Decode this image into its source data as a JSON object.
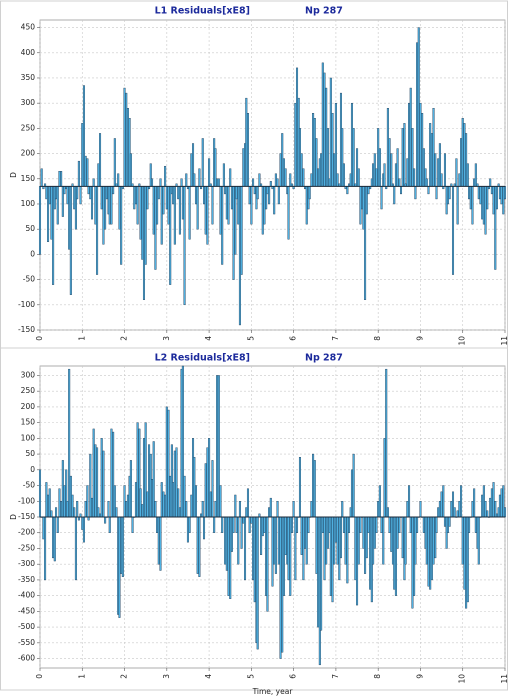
{
  "chart_data": [
    {
      "type": "bar",
      "title": "L1  Residuals[xE8]",
      "annotation": "Np 287",
      "ylabel": "D",
      "color": "#4fb0e0",
      "edgecolor": "#1b3550",
      "baseline": 135,
      "grid": true,
      "xlim": [
        0,
        11
      ],
      "xticks": [
        0,
        1,
        2,
        3,
        4,
        5,
        6,
        7,
        8,
        9,
        10,
        11
      ],
      "ylim": [
        -150,
        465
      ],
      "yticks": [
        -150,
        -100,
        -50,
        0,
        50,
        100,
        150,
        200,
        250,
        300,
        350,
        400,
        450
      ],
      "x": [
        0,
        0.04,
        0.08,
        0.12,
        0.15,
        0.19,
        0.23,
        0.27,
        0.31,
        0.35,
        0.38,
        0.42,
        0.46,
        0.5,
        0.54,
        0.58,
        0.62,
        0.65,
        0.69,
        0.73,
        0.77,
        0.81,
        0.85,
        0.88,
        0.92,
        0.96,
        1,
        1.04,
        1.08,
        1.12,
        1.15,
        1.19,
        1.23,
        1.27,
        1.31,
        1.35,
        1.38,
        1.42,
        1.46,
        1.5,
        1.54,
        1.58,
        1.62,
        1.65,
        1.69,
        1.73,
        1.77,
        1.81,
        1.85,
        1.88,
        1.92,
        1.96,
        2,
        2.04,
        2.08,
        2.12,
        2.15,
        2.19,
        2.23,
        2.27,
        2.31,
        2.35,
        2.38,
        2.42,
        2.46,
        2.5,
        2.54,
        2.58,
        2.62,
        2.65,
        2.69,
        2.73,
        2.77,
        2.81,
        2.85,
        2.88,
        2.92,
        2.96,
        3,
        3.04,
        3.08,
        3.12,
        3.15,
        3.19,
        3.23,
        3.27,
        3.31,
        3.35,
        3.38,
        3.42,
        3.46,
        3.5,
        3.54,
        3.58,
        3.62,
        3.65,
        3.69,
        3.73,
        3.77,
        3.81,
        3.85,
        3.88,
        3.92,
        3.96,
        4,
        4.04,
        4.08,
        4.12,
        4.15,
        4.19,
        4.23,
        4.27,
        4.31,
        4.35,
        4.38,
        4.42,
        4.46,
        4.5,
        4.54,
        4.58,
        4.62,
        4.65,
        4.69,
        4.73,
        4.77,
        4.81,
        4.85,
        4.88,
        4.92,
        4.96,
        5,
        5.04,
        5.08,
        5.12,
        5.15,
        5.19,
        5.23,
        5.27,
        5.31,
        5.35,
        5.38,
        5.42,
        5.46,
        5.5,
        5.54,
        5.58,
        5.62,
        5.65,
        5.69,
        5.73,
        5.77,
        5.81,
        5.85,
        5.88,
        5.92,
        5.96,
        6,
        6.04,
        6.08,
        6.12,
        6.15,
        6.19,
        6.23,
        6.27,
        6.31,
        6.35,
        6.38,
        6.42,
        6.46,
        6.5,
        6.54,
        6.58,
        6.62,
        6.65,
        6.69,
        6.73,
        6.77,
        6.81,
        6.85,
        6.88,
        6.92,
        6.96,
        7,
        7.04,
        7.08,
        7.12,
        7.15,
        7.19,
        7.23,
        7.27,
        7.31,
        7.35,
        7.38,
        7.42,
        7.46,
        7.5,
        7.54,
        7.58,
        7.62,
        7.65,
        7.69,
        7.73,
        7.77,
        7.81,
        7.85,
        7.88,
        7.92,
        7.96,
        8,
        8.04,
        8.08,
        8.12,
        8.15,
        8.19,
        8.23,
        8.27,
        8.31,
        8.35,
        8.38,
        8.42,
        8.46,
        8.5,
        8.54,
        8.58,
        8.62,
        8.65,
        8.69,
        8.73,
        8.77,
        8.81,
        8.85,
        8.88,
        8.92,
        8.96,
        9,
        9.04,
        9.08,
        9.12,
        9.15,
        9.19,
        9.23,
        9.27,
        9.31,
        9.35,
        9.38,
        9.42,
        9.46,
        9.5,
        9.54,
        9.58,
        9.62,
        9.65,
        9.69,
        9.73,
        9.77,
        9.81,
        9.85,
        9.88,
        9.92,
        9.96,
        10,
        10.04,
        10.08,
        10.12,
        10.15,
        10.19,
        10.23,
        10.27,
        10.31,
        10.35,
        10.38,
        10.42,
        10.46,
        10.5,
        10.54,
        10.58,
        10.62,
        10.65,
        10.69,
        10.73,
        10.77,
        10.81,
        10.85,
        10.88,
        10.92,
        10.96,
        11
      ],
      "values": [
        0,
        170,
        130,
        140,
        110,
        25,
        100,
        30,
        -60,
        90,
        110,
        60,
        165,
        165,
        75,
        120,
        130,
        100,
        10,
        -80,
        140,
        90,
        50,
        110,
        185,
        100,
        260,
        335,
        195,
        190,
        120,
        110,
        70,
        150,
        60,
        -40,
        180,
        240,
        90,
        20,
        50,
        110,
        80,
        60,
        60,
        120,
        230,
        140,
        160,
        50,
        -20,
        130,
        330,
        320,
        290,
        270,
        200,
        140,
        90,
        100,
        60,
        140,
        30,
        -10,
        -90,
        -20,
        90,
        130,
        180,
        150,
        40,
        -30,
        60,
        110,
        150,
        20,
        80,
        175,
        90,
        60,
        -60,
        120,
        100,
        20,
        140,
        110,
        40,
        150,
        70,
        -100,
        160,
        130,
        30,
        200,
        220,
        160,
        100,
        50,
        170,
        130,
        230,
        100,
        40,
        20,
        190,
        140,
        60,
        230,
        210,
        150,
        150,
        40,
        -20,
        180,
        120,
        70,
        60,
        170,
        90,
        -50,
        0,
        110,
        60,
        -140,
        -40,
        210,
        220,
        310,
        280,
        100,
        60,
        150,
        120,
        90,
        110,
        160,
        140,
        40,
        60,
        90,
        120,
        100,
        145,
        130,
        80,
        160,
        150,
        100,
        200,
        240,
        190,
        170,
        120,
        30,
        160,
        140,
        130,
        300,
        370,
        310,
        250,
        200,
        170,
        130,
        60,
        90,
        110,
        160,
        280,
        270,
        230,
        170,
        190,
        200,
        380,
        360,
        330,
        250,
        150,
        350,
        280,
        200,
        300,
        160,
        140,
        320,
        250,
        180,
        130,
        120,
        140,
        160,
        300,
        250,
        140,
        210,
        170,
        60,
        90,
        50,
        -90,
        80,
        120,
        130,
        150,
        180,
        200,
        170,
        250,
        210,
        90,
        160,
        180,
        130,
        290,
        230,
        200,
        140,
        100,
        180,
        210,
        150,
        120,
        250,
        260,
        140,
        190,
        300,
        330,
        250,
        170,
        110,
        420,
        450,
        300,
        280,
        210,
        170,
        150,
        120,
        260,
        240,
        290,
        200,
        110,
        190,
        220,
        160,
        130,
        200,
        80,
        100,
        110,
        140,
        -40,
        140,
        190,
        60,
        160,
        230,
        270,
        260,
        240,
        180,
        110,
        90,
        60,
        150,
        180,
        140,
        110,
        100,
        70,
        60,
        40,
        90,
        130,
        150,
        120,
        80,
        -30,
        90,
        140,
        110,
        100,
        80,
        110
      ]
    },
    {
      "type": "bar",
      "title": "L2  Residuals[xE8]",
      "annotation": "Np 287",
      "ylabel": "D",
      "xlabel": "Time, year",
      "color": "#4fb0e0",
      "edgecolor": "#1b3550",
      "baseline": -150,
      "grid": true,
      "xlim": [
        0,
        11
      ],
      "xticks": [
        0,
        1,
        2,
        3,
        4,
        5,
        6,
        7,
        8,
        9,
        10,
        11
      ],
      "ylim": [
        -630,
        330
      ],
      "yticks": [
        -600,
        -550,
        -500,
        -450,
        -400,
        -350,
        -300,
        -250,
        -200,
        -150,
        -100,
        -50,
        0,
        50,
        100,
        150,
        200,
        250,
        300
      ],
      "x": [
        0,
        0.04,
        0.08,
        0.12,
        0.15,
        0.19,
        0.23,
        0.27,
        0.31,
        0.35,
        0.38,
        0.42,
        0.46,
        0.5,
        0.54,
        0.58,
        0.62,
        0.65,
        0.69,
        0.73,
        0.77,
        0.81,
        0.85,
        0.88,
        0.92,
        0.96,
        1,
        1.04,
        1.08,
        1.12,
        1.15,
        1.19,
        1.23,
        1.27,
        1.31,
        1.35,
        1.38,
        1.42,
        1.46,
        1.5,
        1.54,
        1.58,
        1.62,
        1.65,
        1.69,
        1.73,
        1.77,
        1.81,
        1.85,
        1.88,
        1.92,
        1.96,
        2,
        2.04,
        2.08,
        2.12,
        2.15,
        2.19,
        2.23,
        2.27,
        2.31,
        2.35,
        2.38,
        2.42,
        2.46,
        2.5,
        2.54,
        2.58,
        2.62,
        2.65,
        2.69,
        2.73,
        2.77,
        2.81,
        2.85,
        2.88,
        2.92,
        2.96,
        3,
        3.04,
        3.08,
        3.12,
        3.15,
        3.19,
        3.23,
        3.27,
        3.31,
        3.35,
        3.38,
        3.42,
        3.46,
        3.5,
        3.54,
        3.58,
        3.62,
        3.65,
        3.69,
        3.73,
        3.77,
        3.81,
        3.85,
        3.88,
        3.92,
        3.96,
        4,
        4.04,
        4.08,
        4.12,
        4.15,
        4.19,
        4.23,
        4.27,
        4.31,
        4.35,
        4.38,
        4.42,
        4.46,
        4.5,
        4.54,
        4.58,
        4.62,
        4.65,
        4.69,
        4.73,
        4.77,
        4.81,
        4.85,
        4.88,
        4.92,
        4.96,
        5,
        5.04,
        5.08,
        5.12,
        5.15,
        5.19,
        5.23,
        5.27,
        5.31,
        5.35,
        5.38,
        5.42,
        5.46,
        5.5,
        5.54,
        5.58,
        5.62,
        5.65,
        5.69,
        5.73,
        5.77,
        5.81,
        5.85,
        5.88,
        5.92,
        5.96,
        6,
        6.04,
        6.08,
        6.12,
        6.15,
        6.19,
        6.23,
        6.27,
        6.31,
        6.35,
        6.38,
        6.42,
        6.46,
        6.5,
        6.54,
        6.58,
        6.62,
        6.65,
        6.69,
        6.73,
        6.77,
        6.81,
        6.85,
        6.88,
        6.92,
        6.96,
        7,
        7.04,
        7.08,
        7.12,
        7.15,
        7.19,
        7.23,
        7.27,
        7.31,
        7.35,
        7.38,
        7.42,
        7.46,
        7.5,
        7.54,
        7.58,
        7.62,
        7.65,
        7.69,
        7.73,
        7.77,
        7.81,
        7.85,
        7.88,
        7.92,
        7.96,
        8,
        8.04,
        8.08,
        8.12,
        8.15,
        8.19,
        8.23,
        8.27,
        8.31,
        8.35,
        8.38,
        8.42,
        8.46,
        8.5,
        8.54,
        8.58,
        8.62,
        8.65,
        8.69,
        8.73,
        8.77,
        8.81,
        8.85,
        8.88,
        8.92,
        8.96,
        9,
        9.04,
        9.08,
        9.12,
        9.15,
        9.19,
        9.23,
        9.27,
        9.31,
        9.35,
        9.38,
        9.42,
        9.46,
        9.5,
        9.54,
        9.58,
        9.62,
        9.65,
        9.69,
        9.73,
        9.77,
        9.81,
        9.85,
        9.88,
        9.92,
        9.96,
        10,
        10.04,
        10.08,
        10.12,
        10.15,
        10.19,
        10.23,
        10.27,
        10.31,
        10.35,
        10.38,
        10.42,
        10.46,
        10.5,
        10.54,
        10.58,
        10.62,
        10.65,
        10.69,
        10.73,
        10.77,
        10.81,
        10.85,
        10.88,
        10.92,
        10.96,
        11
      ],
      "values": [
        0,
        -150,
        -220,
        -350,
        -40,
        -80,
        -60,
        -130,
        -280,
        -290,
        -120,
        -200,
        -60,
        -100,
        30,
        -50,
        0,
        -100,
        320,
        -20,
        -80,
        -120,
        -350,
        -100,
        -160,
        -140,
        -190,
        -230,
        -100,
        -50,
        -160,
        50,
        -90,
        130,
        80,
        70,
        -120,
        -140,
        100,
        60,
        -170,
        -150,
        -100,
        -200,
        130,
        120,
        -50,
        -120,
        -460,
        -470,
        -330,
        -340,
        -50,
        -100,
        -80,
        -20,
        30,
        -200,
        -150,
        -40,
        150,
        130,
        -60,
        -110,
        100,
        150,
        -70,
        80,
        50,
        -30,
        90,
        -100,
        -200,
        -300,
        -320,
        -40,
        -70,
        -80,
        200,
        190,
        -20,
        80,
        -40,
        60,
        70,
        -60,
        -120,
        320,
        330,
        -20,
        -100,
        -230,
        -200,
        -80,
        100,
        40,
        -50,
        -330,
        -340,
        -140,
        -100,
        -220,
        20,
        70,
        100,
        -70,
        30,
        -200,
        -100,
        300,
        300,
        -50,
        -200,
        -150,
        -300,
        -320,
        -400,
        -410,
        -260,
        -200,
        -80,
        -200,
        -300,
        -100,
        -250,
        -170,
        -350,
        -120,
        -60,
        -200,
        -170,
        -350,
        -420,
        -550,
        -570,
        -140,
        -270,
        -210,
        -200,
        -400,
        -450,
        -120,
        -90,
        -370,
        -300,
        -330,
        -100,
        -300,
        -600,
        -580,
        -400,
        -270,
        -300,
        -350,
        -400,
        -200,
        -100,
        -350,
        -200,
        -150,
        40,
        -270,
        -350,
        -250,
        -300,
        -200,
        -150,
        -100,
        50,
        30,
        -330,
        -500,
        -620,
        -510,
        -200,
        -350,
        -300,
        -250,
        -200,
        -400,
        -420,
        -300,
        -230,
        -300,
        -350,
        -280,
        -100,
        -200,
        -300,
        -360,
        -200,
        -120,
        0,
        50,
        -350,
        -430,
        -300,
        -200,
        -150,
        -250,
        -330,
        -280,
        -200,
        -380,
        -420,
        -300,
        -250,
        -200,
        -100,
        -50,
        -200,
        -300,
        100,
        320,
        -120,
        -200,
        -260,
        -300,
        -380,
        -400,
        -250,
        -200,
        -150,
        -280,
        -350,
        -300,
        -100,
        -50,
        -200,
        -440,
        -400,
        -300,
        -200,
        -150,
        -100,
        -150,
        -200,
        -250,
        -300,
        -370,
        -380,
        -350,
        -300,
        -280,
        -200,
        -120,
        -100,
        -70,
        -50,
        -180,
        -250,
        -200,
        -180,
        -100,
        -70,
        -120,
        -150,
        -130,
        -100,
        -50,
        -300,
        -380,
        -440,
        -420,
        -200,
        -150,
        -100,
        -60,
        -200,
        -250,
        -300,
        -150,
        -80,
        -50,
        -100,
        -130,
        -150,
        -90,
        -60,
        -40,
        -100,
        -140,
        -120,
        -80,
        -60,
        -50,
        -120
      ]
    }
  ]
}
